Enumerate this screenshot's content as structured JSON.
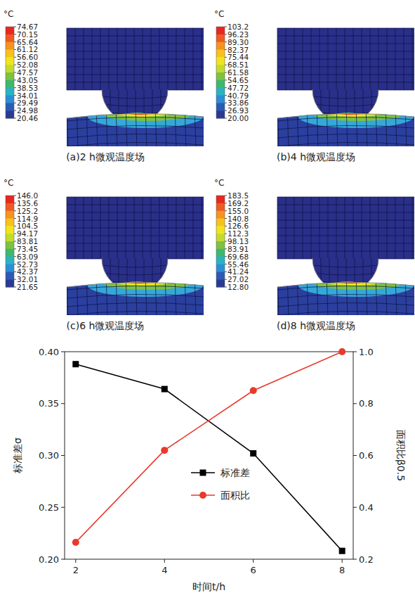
{
  "panels": [
    {
      "caption": "(a)2 h微观温度场",
      "colorbar": {
        "unit": "°C",
        "ticks": [
          74.67,
          70.15,
          65.64,
          61.12,
          {
            "value": 56.6,
            "label": "56.60"
          },
          52.08,
          47.57,
          43.05,
          38.53,
          34.01,
          29.49,
          24.98,
          20.46
        ]
      }
    },
    {
      "caption": "(b)4 h微观温度场",
      "colorbar": {
        "unit": "°C",
        "ticks": [
          103.2,
          96.23,
          {
            "value": 89.3,
            "label": "89.30"
          },
          82.37,
          75.44,
          68.51,
          61.58,
          54.65,
          47.72,
          40.79,
          33.86,
          26.93,
          {
            "value": 20,
            "label": "20.00"
          }
        ]
      }
    },
    {
      "caption": "(c)6 h微观温度场",
      "colorbar": {
        "unit": "°C",
        "ticks": [
          {
            "value": 146,
            "label": "146.0"
          },
          135.6,
          125.2,
          114.9,
          104.5,
          94.17,
          83.81,
          73.45,
          63.09,
          52.73,
          42.37,
          32.01,
          21.65
        ]
      }
    },
    {
      "caption": "(d)8 h微观温度场",
      "colorbar": {
        "unit": "°C",
        "ticks": [
          183.5,
          169.2,
          {
            "value": 155,
            "label": "155.0"
          },
          140.8,
          126.6,
          112.3,
          98.13,
          83.91,
          69.68,
          55.46,
          41.24,
          27.02,
          {
            "value": 12.8,
            "label": "12.80"
          }
        ]
      }
    }
  ],
  "chart_data": {
    "type": "line",
    "x_label": "时间t/h",
    "y_label": "标准差σ",
    "y2_label": "面积比β0.5",
    "x": [
      2,
      4,
      6,
      8
    ],
    "xlim": [
      1.75,
      8.25
    ],
    "xticks": [
      2,
      4,
      6,
      8
    ],
    "ylim": [
      0.2,
      0.4
    ],
    "yticks": [
      {
        "value": 0.2,
        "label": "0.20"
      },
      0.25,
      {
        "value": 0.3,
        "label": "0.30"
      },
      0.35,
      {
        "value": 0.4,
        "label": "0.40"
      }
    ],
    "y2lim": [
      0.2,
      1.0
    ],
    "y2ticks": [
      0.2,
      0.4,
      0.6,
      0.8,
      {
        "value": 1.0,
        "label": "1.0"
      }
    ],
    "legend": "center",
    "series": [
      {
        "name": "标准差",
        "color": "#000000",
        "marker": "square",
        "values": [
          0.388,
          0.364,
          0.302,
          0.208
        ]
      },
      {
        "name": "面积比",
        "color": "#e8392d",
        "marker": "circle",
        "axis": "y2",
        "values": [
          0.265,
          0.62,
          0.85,
          1.0
        ]
      }
    ]
  }
}
